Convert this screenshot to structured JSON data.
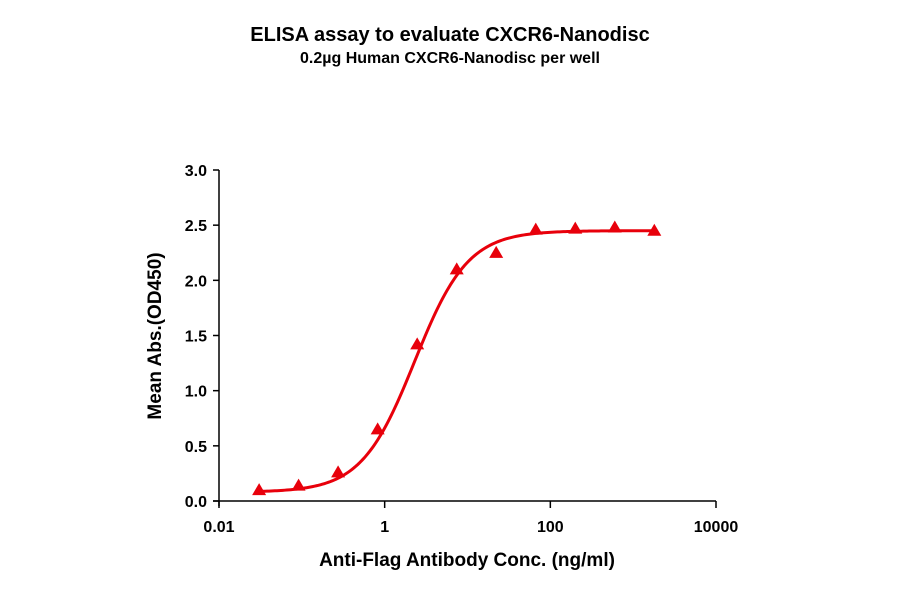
{
  "chart_data": {
    "type": "scatter",
    "title": "ELISA assay to evaluate CXCR6-Nanodisc",
    "subtitle": "0.2µg Human CXCR6-Nanodisc per well",
    "xlabel": "Anti-Flag Antibody Conc. (ng/ml)",
    "ylabel": "Mean Abs.(OD450)",
    "xscale": "log",
    "xlim": [
      0.01,
      10000
    ],
    "ylim": [
      0.0,
      3.0
    ],
    "xticks": [
      0.01,
      1,
      100,
      10000
    ],
    "xtick_labels": [
      "0.01",
      "1",
      "100",
      "10000"
    ],
    "yticks": [
      0.0,
      0.5,
      1.0,
      1.5,
      2.0,
      2.5,
      3.0
    ],
    "ytick_labels": [
      "0.0",
      "0.5",
      "1.0",
      "1.5",
      "2.0",
      "2.5",
      "3.0"
    ],
    "grid": false,
    "legend": null,
    "series": [
      {
        "name": "CXCR6-Nanodisc",
        "color": "#e8000b",
        "marker": "triangle",
        "fit": "4PL sigmoidal curve",
        "x": [
          0.0305,
          0.0914,
          0.274,
          0.823,
          2.47,
          7.41,
          22.2,
          66.7,
          200,
          600,
          1800
        ],
        "y": [
          0.09,
          0.13,
          0.25,
          0.64,
          1.41,
          2.09,
          2.24,
          2.45,
          2.46,
          2.47,
          2.44
        ]
      }
    ],
    "fit_params": {
      "bottom": 0.08,
      "top": 2.45,
      "ec50": 2.3,
      "hill": 1.35
    }
  }
}
